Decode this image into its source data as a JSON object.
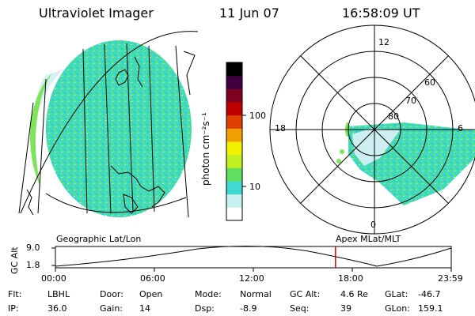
{
  "header": {
    "title": "Ultraviolet Imager",
    "date": "11 Jun 07",
    "time": "16:58:09 UT"
  },
  "colorbar": {
    "unit_label": "photon cm⁻²s⁻¹",
    "ticks": [
      "100",
      "10"
    ],
    "colors": [
      "#ffffff",
      "#c8f0f0",
      "#40d8d0",
      "#60e060",
      "#c0f020",
      "#f0f000",
      "#f0a000",
      "#e04000",
      "#c00000",
      "#800020",
      "#400040",
      "#000000"
    ]
  },
  "polar_plot": {
    "mlt_labels": {
      "top": "12",
      "left": "18",
      "right": "6",
      "bottom": "0"
    },
    "lat_labels": [
      "60",
      "70",
      "80"
    ]
  },
  "altitude_strip": {
    "y_axis_label": "GC Alt",
    "y_ticks": [
      "9.0",
      "1.8"
    ],
    "left_caption": "Geographic Lat/Lon",
    "right_caption": "Apex MLat/MLT",
    "x_ticks": [
      "00:00",
      "06:00",
      "12:00",
      "18:00",
      "23:59"
    ],
    "current_time_hours": 16.97
  },
  "info_rows": [
    [
      {
        "key": "Flt:",
        "value": "LBHL"
      },
      {
        "key": "Door:",
        "value": "Open"
      },
      {
        "key": "Mode:",
        "value": "Normal"
      },
      {
        "key": "GC Alt:",
        "value": "4.6 Re"
      },
      {
        "key": "GLat:",
        "value": "-46.7"
      }
    ],
    [
      {
        "key": "IP:",
        "value": "36.0"
      },
      {
        "key": "Gain:",
        "value": "14"
      },
      {
        "key": "Dsp:",
        "value": "-8.9"
      },
      {
        "key": "Seq:",
        "value": "39"
      },
      {
        "key": "GLon:",
        "value": "159.1"
      }
    ]
  ]
}
